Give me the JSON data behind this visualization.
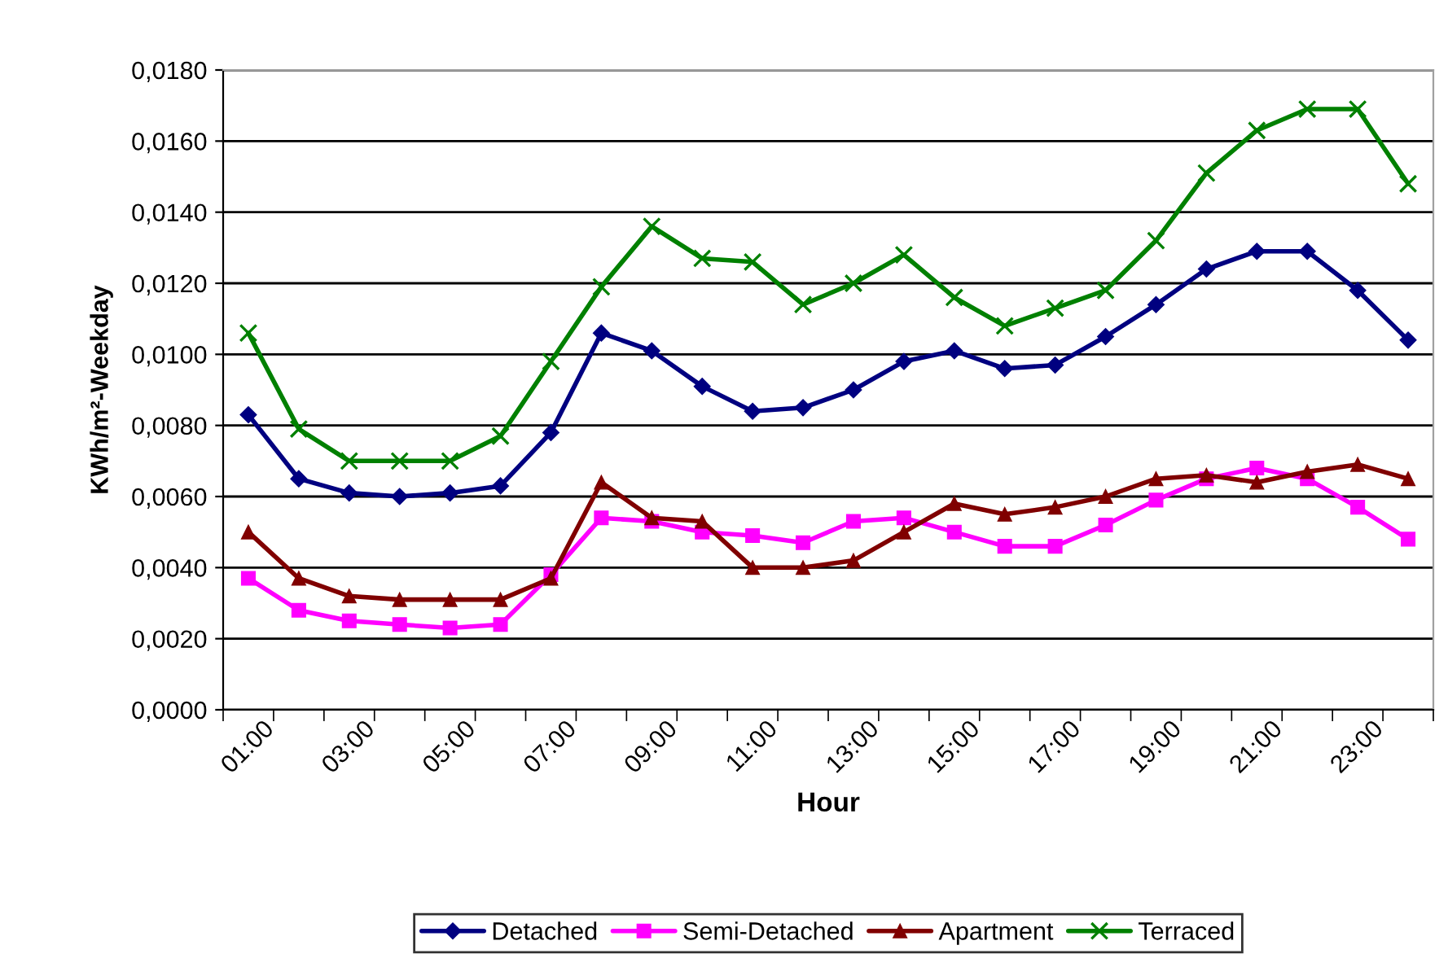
{
  "chart_data": {
    "type": "line",
    "xlabel": "Hour",
    "ylabel": "KWh/m²-Weekday",
    "categories": [
      "01:00",
      null,
      "03:00",
      null,
      "05:00",
      null,
      "07:00",
      null,
      "09:00",
      null,
      "11:00",
      null,
      "13:00",
      null,
      "15:00",
      null,
      "17:00",
      null,
      "19:00",
      null,
      "21:00",
      null,
      "23:00",
      null
    ],
    "series": [
      {
        "name": "Detached",
        "color": "#000080",
        "marker": "diamond",
        "values": [
          0.0083,
          0.0065,
          0.0061,
          0.006,
          0.0061,
          0.0063,
          0.0078,
          0.0106,
          0.0101,
          0.0091,
          0.0084,
          0.0085,
          0.009,
          0.0098,
          0.0101,
          0.0096,
          0.0097,
          0.0105,
          0.0114,
          0.0124,
          0.0129,
          0.0129,
          0.0118,
          0.0104
        ]
      },
      {
        "name": "Semi-Detached",
        "color": "#ff00ff",
        "marker": "square",
        "values": [
          0.0037,
          0.0028,
          0.0025,
          0.0024,
          0.0023,
          0.0024,
          0.0038,
          0.0054,
          0.0053,
          0.005,
          0.0049,
          0.0047,
          0.0053,
          0.0054,
          0.005,
          0.0046,
          0.0046,
          0.0052,
          0.0059,
          0.0065,
          0.0068,
          0.0065,
          0.0057,
          0.0048
        ]
      },
      {
        "name": "Apartment",
        "color": "#800000",
        "marker": "triangle",
        "values": [
          0.005,
          0.0037,
          0.0032,
          0.0031,
          0.0031,
          0.0031,
          0.0037,
          0.0064,
          0.0054,
          0.0053,
          0.004,
          0.004,
          0.0042,
          0.005,
          0.0058,
          0.0055,
          0.0057,
          0.006,
          0.0065,
          0.0066,
          0.0064,
          0.0067,
          0.0069,
          0.0065
        ]
      },
      {
        "name": "Terraced",
        "color": "#008000",
        "marker": "cross",
        "values": [
          0.0106,
          0.0079,
          0.007,
          0.007,
          0.007,
          0.0077,
          0.0098,
          0.0119,
          0.0136,
          0.0127,
          0.0126,
          0.0114,
          0.012,
          0.0128,
          0.0116,
          0.0108,
          0.0113,
          0.0118,
          0.0132,
          0.0151,
          0.0163,
          0.0169,
          0.0169,
          0.0148
        ]
      }
    ],
    "ylim": [
      0,
      0.018
    ],
    "yticks": [
      {
        "value": 0,
        "label": "0,0000"
      },
      {
        "value": 0.002,
        "label": "0,0020"
      },
      {
        "value": 0.004,
        "label": "0,0040"
      },
      {
        "value": 0.006,
        "label": "0,0060"
      },
      {
        "value": 0.008,
        "label": "0,0080"
      },
      {
        "value": 0.01,
        "label": "0,0100"
      },
      {
        "value": 0.012,
        "label": "0,0120"
      },
      {
        "value": 0.014,
        "label": "0,0140"
      },
      {
        "value": 0.016,
        "label": "0,0160"
      },
      {
        "value": 0.018,
        "label": "0,0180"
      }
    ],
    "grid": "y",
    "legend": "bottom",
    "line_style": "solid"
  }
}
